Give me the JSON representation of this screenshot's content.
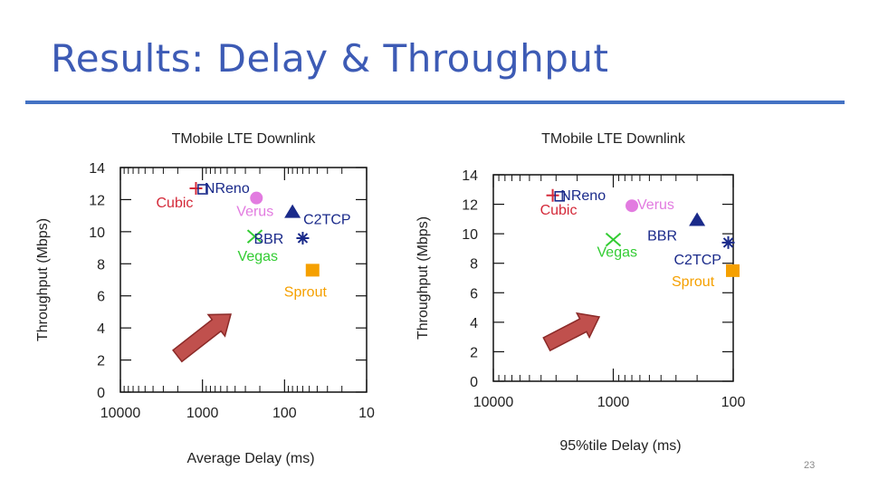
{
  "slide": {
    "title": "Results: Delay & Throughput",
    "page_number": "23"
  },
  "colors": {
    "title": "#3D5BB5",
    "rule": "#4472C4",
    "cubic": "#D42A3A",
    "nreno": "#1A2A8A",
    "verus": "#E27BE0",
    "c2tcp": "#1A2A8A",
    "bbr": "#1A2A8A",
    "vegas": "#33CC33",
    "sprout": "#F5A000",
    "arrow": "#C0504D"
  },
  "chart_data": [
    {
      "type": "scatter",
      "title": "TMobile LTE Downlink",
      "xlabel": "Average Delay (ms)",
      "ylabel": "Throughput (Mbps)",
      "x_scale": "log",
      "x_reversed": true,
      "xlim": [
        10000,
        10
      ],
      "ylim": [
        0,
        14
      ],
      "x_ticks": [
        10000,
        1000,
        100,
        10
      ],
      "x_tick_labels": [
        "10000",
        "1000",
        "100",
        "10"
      ],
      "y_ticks": [
        0,
        2,
        4,
        6,
        8,
        10,
        12,
        14
      ],
      "y_tick_labels": [
        "0",
        "2",
        "4",
        "6",
        "8",
        "10",
        "12",
        "14"
      ],
      "grid": false,
      "series": [
        {
          "name": "Cubic",
          "marker": "plus",
          "color": "#D42A3A",
          "points": [
            {
              "x": 1200,
              "y": 12.7
            }
          ]
        },
        {
          "name": "NReno",
          "marker": "square-open",
          "color": "#1A2A8A",
          "points": [
            {
              "x": 1100,
              "y": 12.7
            }
          ]
        },
        {
          "name": "Verus",
          "marker": "circle",
          "color": "#E27BE0",
          "points": [
            {
              "x": 220,
              "y": 12.1
            }
          ]
        },
        {
          "name": "Vegas",
          "marker": "x",
          "color": "#33CC33",
          "points": [
            {
              "x": 230,
              "y": 9.7
            }
          ]
        },
        {
          "name": "C2TCP",
          "marker": "triangle",
          "color": "#1A2A8A",
          "points": [
            {
              "x": 80,
              "y": 11.2
            }
          ]
        },
        {
          "name": "BBR",
          "marker": "asterisk",
          "color": "#1A2A8A",
          "points": [
            {
              "x": 60,
              "y": 9.6
            }
          ]
        },
        {
          "name": "Sprout",
          "marker": "square",
          "color": "#F5A000",
          "points": [
            {
              "x": 45,
              "y": 7.6
            }
          ]
        }
      ],
      "annotations": [
        "Cubic",
        "NReno",
        "Verus",
        "Vegas",
        "C2TCP",
        "BBR",
        "Sprout"
      ]
    },
    {
      "type": "scatter",
      "title": "TMobile LTE Downlink",
      "xlabel": "95%tile Delay (ms)",
      "ylabel": "Throughput (Mbps)",
      "x_scale": "log",
      "x_reversed": true,
      "xlim": [
        10000,
        100
      ],
      "ylim": [
        0,
        14
      ],
      "x_ticks": [
        10000,
        1000,
        100
      ],
      "x_tick_labels": [
        "10000",
        "1000",
        "100"
      ],
      "y_ticks": [
        0,
        2,
        4,
        6,
        8,
        10,
        12,
        14
      ],
      "y_tick_labels": [
        "0",
        "2",
        "4",
        "6",
        "8",
        "10",
        "12",
        "14"
      ],
      "grid": false,
      "series": [
        {
          "name": "Cubic",
          "marker": "plus",
          "color": "#D42A3A",
          "points": [
            {
              "x": 3200,
              "y": 12.6
            }
          ]
        },
        {
          "name": "NReno",
          "marker": "square-open",
          "color": "#1A2A8A",
          "points": [
            {
              "x": 3000,
              "y": 12.6
            }
          ]
        },
        {
          "name": "Verus",
          "marker": "circle",
          "color": "#E27BE0",
          "points": [
            {
              "x": 700,
              "y": 11.9
            }
          ]
        },
        {
          "name": "Vegas",
          "marker": "x",
          "color": "#33CC33",
          "points": [
            {
              "x": 1000,
              "y": 9.6
            }
          ]
        },
        {
          "name": "BBR",
          "marker": "triangle",
          "color": "#1A2A8A",
          "points": [
            {
              "x": 200,
              "y": 10.9
            }
          ]
        },
        {
          "name": "C2TCP",
          "marker": "asterisk",
          "color": "#1A2A8A",
          "points": [
            {
              "x": 110,
              "y": 9.4
            }
          ]
        },
        {
          "name": "Sprout",
          "marker": "square",
          "color": "#F5A000",
          "points": [
            {
              "x": 100,
              "y": 7.5
            }
          ]
        }
      ],
      "annotations": [
        "Cubic",
        "NReno",
        "Verus",
        "Vegas",
        "BBR",
        "C2TCP",
        "Sprout"
      ]
    }
  ]
}
